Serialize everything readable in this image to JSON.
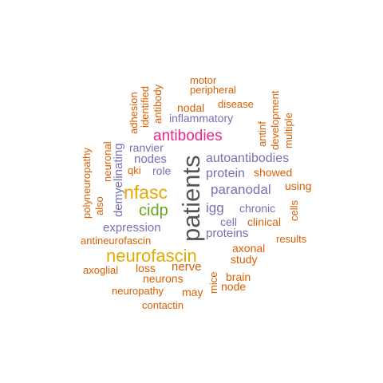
{
  "colors": {
    "orange": "#d95f02",
    "purple": "#7570b3",
    "magenta": "#e7298a",
    "green": "#66a61e",
    "gold": "#e6ab02",
    "gray": "#555555"
  },
  "words": [
    {
      "text": "patients",
      "color": "gray",
      "vertical": true
    },
    {
      "text": "neurofascin",
      "color": "gold"
    },
    {
      "text": "nfasc",
      "color": "gold"
    },
    {
      "text": "antibodies",
      "color": "magenta"
    },
    {
      "text": "cidp",
      "color": "green"
    },
    {
      "text": "autoantibodies",
      "color": "purple"
    },
    {
      "text": "paranodal",
      "color": "purple"
    },
    {
      "text": "protein",
      "color": "purple"
    },
    {
      "text": "proteins",
      "color": "purple"
    },
    {
      "text": "igg",
      "color": "purple"
    },
    {
      "text": "expression",
      "color": "purple"
    },
    {
      "text": "demyelinating",
      "color": "purple",
      "vertical": true
    },
    {
      "text": "inflammatory",
      "color": "purple"
    },
    {
      "text": "ranvier",
      "color": "purple"
    },
    {
      "text": "nodes",
      "color": "purple"
    },
    {
      "text": "role",
      "color": "purple"
    },
    {
      "text": "chronic",
      "color": "purple"
    },
    {
      "text": "cell",
      "color": "purple"
    },
    {
      "text": "motor",
      "color": "orange"
    },
    {
      "text": "peripheral",
      "color": "orange"
    },
    {
      "text": "nodal",
      "color": "orange"
    },
    {
      "text": "disease",
      "color": "orange"
    },
    {
      "text": "adhesion",
      "color": "orange",
      "vertical": true
    },
    {
      "text": "identified",
      "color": "orange",
      "vertical": true
    },
    {
      "text": "antibody",
      "color": "orange",
      "vertical": true
    },
    {
      "text": "development",
      "color": "orange",
      "vertical": true
    },
    {
      "text": "antinf",
      "color": "orange",
      "vertical": true
    },
    {
      "text": "multiple",
      "color": "orange",
      "vertical": true
    },
    {
      "text": "polyneuropathy",
      "color": "orange",
      "vertical": true
    },
    {
      "text": "also",
      "color": "orange",
      "vertical": true
    },
    {
      "text": "neuronal",
      "color": "orange",
      "vertical": true
    },
    {
      "text": "qki",
      "color": "orange"
    },
    {
      "text": "showed",
      "color": "orange"
    },
    {
      "text": "using",
      "color": "orange"
    },
    {
      "text": "clinical",
      "color": "orange"
    },
    {
      "text": "cells",
      "color": "orange",
      "vertical": true
    },
    {
      "text": "antineurofascin",
      "color": "orange"
    },
    {
      "text": "axonal",
      "color": "orange"
    },
    {
      "text": "results",
      "color": "orange"
    },
    {
      "text": "study",
      "color": "orange"
    },
    {
      "text": "axoglial",
      "color": "orange"
    },
    {
      "text": "loss",
      "color": "orange"
    },
    {
      "text": "nerve",
      "color": "orange"
    },
    {
      "text": "mice",
      "color": "orange",
      "vertical": true
    },
    {
      "text": "brain",
      "color": "orange"
    },
    {
      "text": "neurons",
      "color": "orange"
    },
    {
      "text": "node",
      "color": "orange"
    },
    {
      "text": "neuropathy",
      "color": "orange"
    },
    {
      "text": "may",
      "color": "orange"
    },
    {
      "text": "contactin",
      "color": "orange"
    }
  ]
}
